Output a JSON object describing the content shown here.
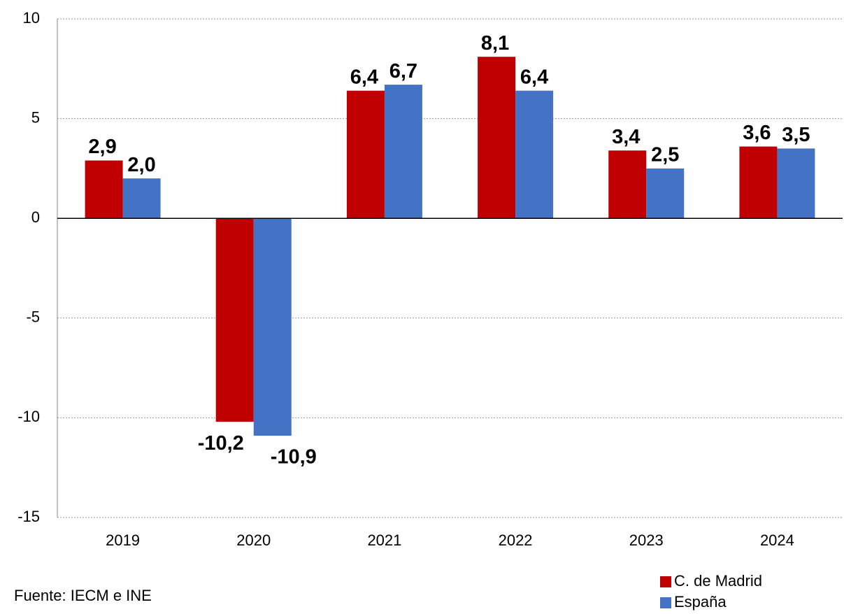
{
  "chart_data": {
    "type": "bar",
    "categories": [
      "2019",
      "2020",
      "2021",
      "2022",
      "2023",
      "2024"
    ],
    "series": [
      {
        "name": "C. de Madrid",
        "color": "#c00000",
        "values": [
          2.9,
          -10.2,
          6.4,
          8.1,
          3.4,
          3.6
        ],
        "value_labels": [
          "2,9",
          "-10,2",
          "6,4",
          "8,1",
          "3,4",
          "3,6"
        ]
      },
      {
        "name": "España",
        "color": "#4472c4",
        "values": [
          2.0,
          -10.9,
          6.7,
          6.4,
          2.5,
          3.5
        ],
        "value_labels": [
          "2,0",
          "-10,9",
          "6,7",
          "6,4",
          "2,5",
          "3,5"
        ]
      }
    ],
    "ylim": [
      -15,
      10
    ],
    "yticks": [
      -15,
      -10,
      -5,
      0,
      5,
      10
    ],
    "grid": true,
    "legend": "bottom-right",
    "source": "Fuente: IECM e INE"
  }
}
